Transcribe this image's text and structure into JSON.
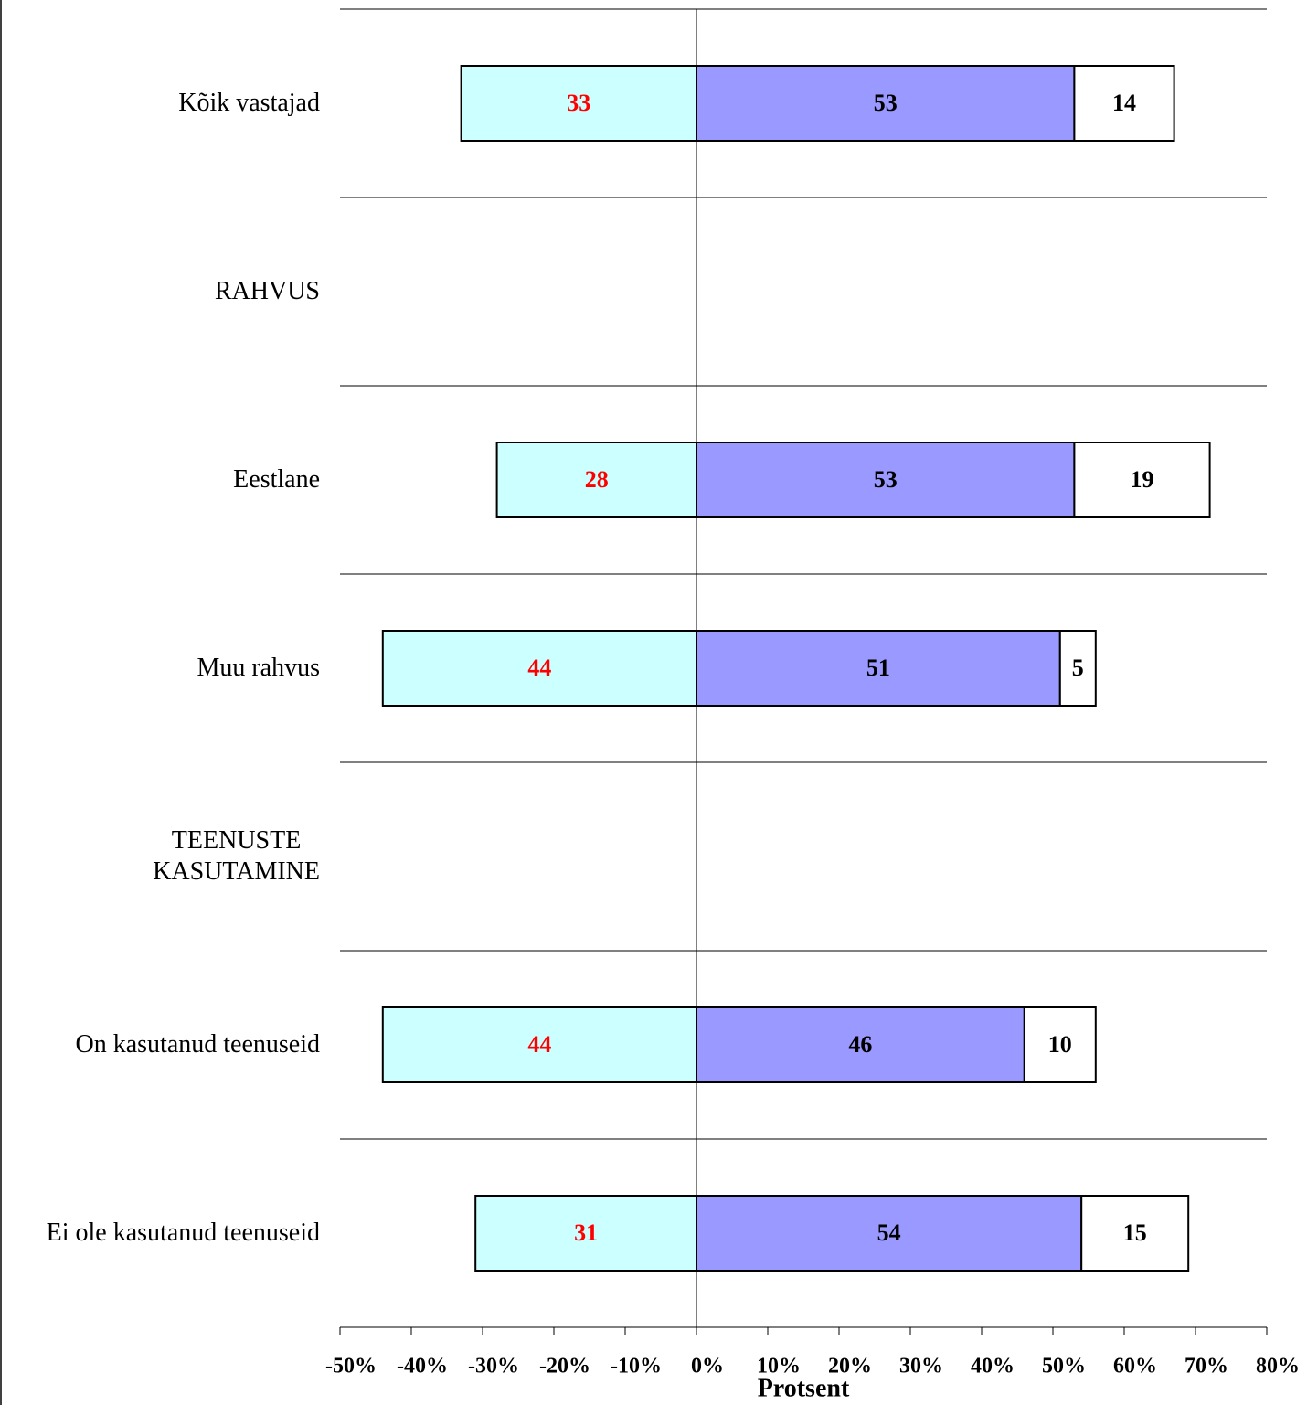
{
  "chart_data": {
    "type": "diverging_stacked_bar",
    "xlabel": "Protsent",
    "categories": [
      "Kõik vastajad",
      "RAHVUS",
      "Eestlane",
      "Muu rahvus",
      "TEENUSTE\nKASUTAMINE",
      "On kasutanud teenuseid",
      "Ei ole kasutanud teenuseid"
    ],
    "series": [
      {
        "color": "#ccffff",
        "label_color": "#ff0000",
        "values": [
          -33,
          null,
          -28,
          -44,
          null,
          -44,
          -31
        ],
        "value_labels": [
          "33",
          null,
          "28",
          "44",
          null,
          "44",
          "31"
        ]
      },
      {
        "color": "#9999ff",
        "label_color": "#000000",
        "values": [
          53,
          null,
          53,
          51,
          null,
          46,
          54
        ]
      },
      {
        "color": "#ffffff",
        "label_color": "#000000",
        "values": [
          14,
          null,
          19,
          5,
          null,
          10,
          15
        ]
      }
    ],
    "xlim": [
      -50,
      80
    ],
    "xticks": [
      {
        "value": -50,
        "label": "-50%"
      },
      {
        "value": -40,
        "label": "-40%"
      },
      {
        "value": -30,
        "label": "-30%"
      },
      {
        "value": -20,
        "label": "-20%"
      },
      {
        "value": -10,
        "label": "-10%"
      },
      {
        "value": 0,
        "label": "0%"
      },
      {
        "value": 10,
        "label": "10%"
      },
      {
        "value": 20,
        "label": "20%"
      },
      {
        "value": 30,
        "label": "30%"
      },
      {
        "value": 40,
        "label": "40%"
      },
      {
        "value": 50,
        "label": "50%"
      },
      {
        "value": 60,
        "label": "60%"
      },
      {
        "value": 70,
        "label": "70%"
      },
      {
        "value": 80,
        "label": "80%"
      }
    ]
  }
}
